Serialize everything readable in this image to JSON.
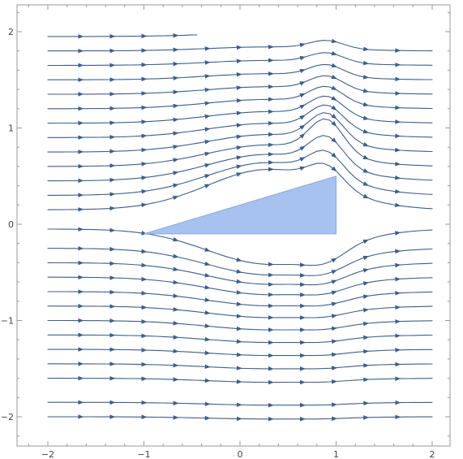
{
  "chart_data": {
    "type": "stream",
    "title": "",
    "xlabel": "",
    "ylabel": "",
    "xlim": [
      -2.2,
      2.3
    ],
    "ylim": [
      -2.3,
      2.2
    ],
    "x_ticks": [
      -2,
      -1,
      0,
      1,
      2
    ],
    "y_ticks": [
      -2,
      -1,
      0,
      1,
      2
    ],
    "x_tick_labels": [
      "−2",
      "−1",
      "0",
      "1",
      "2"
    ],
    "y_tick_labels": [
      "−2",
      "−1",
      "0",
      "1",
      "2"
    ],
    "colors": {
      "stream": "#3d5f8c",
      "obstacle_fill": "#a8c2f0",
      "obstacle_stroke": "#8aaae0",
      "frame": "#999999"
    },
    "obstacle": {
      "shape": "triangle",
      "vertices": [
        [
          -1.0,
          -0.1
        ],
        [
          1.0,
          -0.1
        ],
        [
          1.0,
          0.5
        ]
      ]
    },
    "streamlines": [
      {
        "y": 1.95,
        "x_end": -0.45
      },
      {
        "y": 1.8
      },
      {
        "y": 1.65
      },
      {
        "y": 1.5
      },
      {
        "y": 1.35
      },
      {
        "y": 1.2
      },
      {
        "y": 1.05
      },
      {
        "y": 0.9
      },
      {
        "y": 0.75
      },
      {
        "y": 0.6
      },
      {
        "y": 0.45
      },
      {
        "y": 0.3
      },
      {
        "y": 0.15
      },
      {
        "y": -0.05
      },
      {
        "y": -0.25
      },
      {
        "y": -0.4
      },
      {
        "y": -0.55
      },
      {
        "y": -0.7
      },
      {
        "y": -0.85
      },
      {
        "y": -1.0
      },
      {
        "y": -1.15
      },
      {
        "y": -1.3
      },
      {
        "y": -1.45
      },
      {
        "y": -1.6
      },
      {
        "y": -1.85
      },
      {
        "y": -2.0
      }
    ],
    "x_start": -2.0,
    "x_end": 2.0,
    "grid": false
  }
}
